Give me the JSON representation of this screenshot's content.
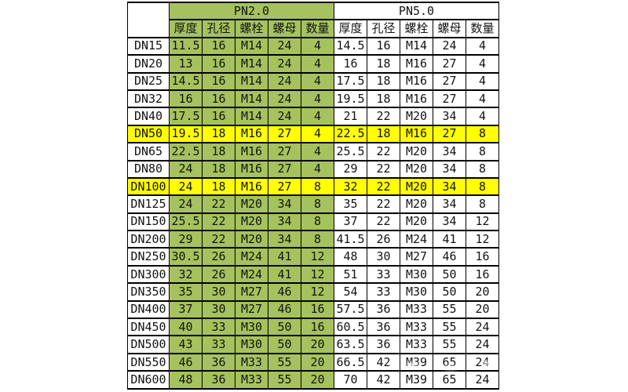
{
  "colors": {
    "pn20_fill": "#a5c25e",
    "highlight_fill": "#ffff00",
    "border": "#000000",
    "background": "#ffffff"
  },
  "table": {
    "sections": [
      {
        "label": "PN2.0"
      },
      {
        "label": "PN5.0"
      }
    ],
    "column_headers": [
      "厚度",
      "孔径",
      "螺栓",
      "螺母",
      "数量"
    ],
    "rows": [
      {
        "dn": "DN15",
        "highlight": false,
        "pn20": [
          "11.5",
          "16",
          "M14",
          "24",
          "4"
        ],
        "pn50": [
          "14.5",
          "16",
          "M14",
          "24",
          "4"
        ]
      },
      {
        "dn": "DN20",
        "highlight": false,
        "pn20": [
          "13",
          "16",
          "M14",
          "24",
          "4"
        ],
        "pn50": [
          "16",
          "18",
          "M16",
          "27",
          "4"
        ]
      },
      {
        "dn": "DN25",
        "highlight": false,
        "pn20": [
          "14.5",
          "16",
          "M14",
          "24",
          "4"
        ],
        "pn50": [
          "17.5",
          "18",
          "M16",
          "27",
          "4"
        ]
      },
      {
        "dn": "DN32",
        "highlight": false,
        "pn20": [
          "16",
          "16",
          "M14",
          "24",
          "4"
        ],
        "pn50": [
          "19.5",
          "18",
          "M16",
          "27",
          "4"
        ]
      },
      {
        "dn": "DN40",
        "highlight": false,
        "pn20": [
          "17.5",
          "16",
          "M14",
          "24",
          "4"
        ],
        "pn50": [
          "21",
          "22",
          "M20",
          "34",
          "4"
        ]
      },
      {
        "dn": "DN50",
        "highlight": true,
        "pn20": [
          "19.5",
          "18",
          "M16",
          "27",
          "4"
        ],
        "pn50": [
          "22.5",
          "18",
          "M16",
          "27",
          "8"
        ]
      },
      {
        "dn": "DN65",
        "highlight": false,
        "pn20": [
          "22.5",
          "18",
          "M16",
          "27",
          "4"
        ],
        "pn50": [
          "25.5",
          "22",
          "M20",
          "34",
          "8"
        ]
      },
      {
        "dn": "DN80",
        "highlight": false,
        "pn20": [
          "24",
          "18",
          "M16",
          "27",
          "4"
        ],
        "pn50": [
          "29",
          "22",
          "M20",
          "34",
          "8"
        ]
      },
      {
        "dn": "DN100",
        "highlight": true,
        "pn20": [
          "24",
          "18",
          "M16",
          "27",
          "8"
        ],
        "pn50": [
          "32",
          "22",
          "M20",
          "34",
          "8"
        ]
      },
      {
        "dn": "DN125",
        "highlight": false,
        "pn20": [
          "24",
          "22",
          "M20",
          "34",
          "8"
        ],
        "pn50": [
          "35",
          "22",
          "M20",
          "34",
          "8"
        ]
      },
      {
        "dn": "DN150",
        "highlight": false,
        "pn20": [
          "25.5",
          "22",
          "M20",
          "34",
          "8"
        ],
        "pn50": [
          "37",
          "22",
          "M20",
          "34",
          "12"
        ]
      },
      {
        "dn": "DN200",
        "highlight": false,
        "pn20": [
          "29",
          "22",
          "M20",
          "34",
          "8"
        ],
        "pn50": [
          "41.5",
          "26",
          "M24",
          "41",
          "12"
        ]
      },
      {
        "dn": "DN250",
        "highlight": false,
        "pn20": [
          "30.5",
          "26",
          "M24",
          "41",
          "12"
        ],
        "pn50": [
          "48",
          "30",
          "M27",
          "46",
          "16"
        ]
      },
      {
        "dn": "DN300",
        "highlight": false,
        "pn20": [
          "32",
          "26",
          "M24",
          "41",
          "12"
        ],
        "pn50": [
          "51",
          "33",
          "M30",
          "50",
          "16"
        ]
      },
      {
        "dn": "DN350",
        "highlight": false,
        "pn20": [
          "35",
          "30",
          "M27",
          "46",
          "12"
        ],
        "pn50": [
          "54",
          "33",
          "M30",
          "50",
          "20"
        ]
      },
      {
        "dn": "DN400",
        "highlight": false,
        "pn20": [
          "37",
          "30",
          "M27",
          "46",
          "16"
        ],
        "pn50": [
          "57.5",
          "36",
          "M33",
          "55",
          "20"
        ]
      },
      {
        "dn": "DN450",
        "highlight": false,
        "pn20": [
          "40",
          "33",
          "M30",
          "50",
          "16"
        ],
        "pn50": [
          "60.5",
          "36",
          "M33",
          "55",
          "24"
        ]
      },
      {
        "dn": "DN500",
        "highlight": false,
        "pn20": [
          "43",
          "33",
          "M30",
          "50",
          "20"
        ],
        "pn50": [
          "63.5",
          "36",
          "M33",
          "55",
          "24"
        ]
      },
      {
        "dn": "DN550",
        "highlight": false,
        "pn20": [
          "46",
          "36",
          "M33",
          "55",
          "20"
        ],
        "pn50": [
          "66.5",
          "42",
          "M39",
          "65",
          "24"
        ]
      },
      {
        "dn": "DN600",
        "highlight": false,
        "pn20": [
          "48",
          "36",
          "M33",
          "55",
          "20"
        ],
        "pn50": [
          "70",
          "42",
          "M39",
          "65",
          "24"
        ]
      }
    ]
  }
}
